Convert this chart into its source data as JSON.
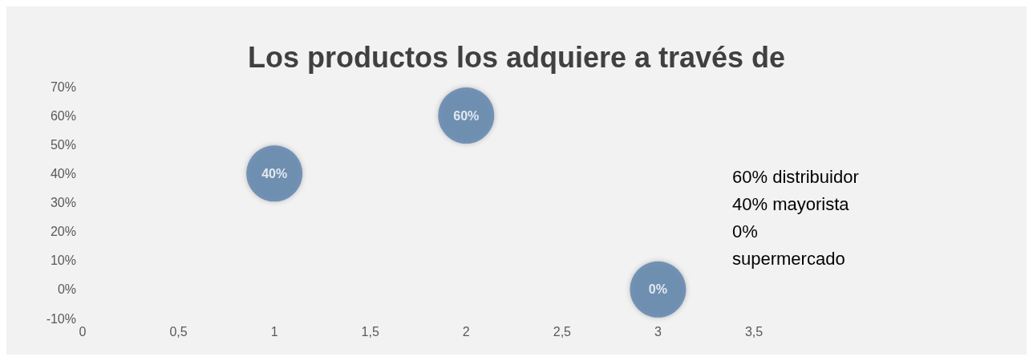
{
  "chart_data": {
    "type": "bubble",
    "title": "Los productos los adquiere a través de",
    "x": [
      1,
      2,
      3
    ],
    "values": [
      40,
      60,
      0
    ],
    "sizes": [
      1,
      1,
      1
    ],
    "value_labels": [
      "40%",
      "60%",
      "0%"
    ],
    "color": "#5b80aa",
    "marker": "circle",
    "xlim": [
      0,
      3.5
    ],
    "xticks": [
      0,
      {
        "value": 0.5,
        "label": "0,5"
      },
      1,
      {
        "value": 1.5,
        "label": "1,5"
      },
      2,
      {
        "value": 2.5,
        "label": "2,5"
      },
      3,
      {
        "value": 3.5,
        "label": "3,5"
      }
    ],
    "ylim": [
      -10,
      70
    ],
    "yticks": [
      {
        "value": -10,
        "label": "-10%"
      },
      {
        "value": 0,
        "label": "0%"
      },
      {
        "value": 10,
        "label": "10%"
      },
      {
        "value": 20,
        "label": "20%"
      },
      {
        "value": 30,
        "label": "30%"
      },
      {
        "value": 40,
        "label": "40%"
      },
      {
        "value": 50,
        "label": "50%"
      },
      {
        "value": 60,
        "label": "60%"
      },
      {
        "value": 70,
        "label": "70%"
      }
    ],
    "grid": false,
    "annotations": [
      "60% distribuidor",
      "40% mayorista",
      "0%",
      "supermercado"
    ]
  }
}
